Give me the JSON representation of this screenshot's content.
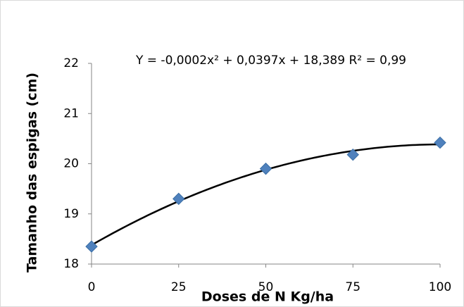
{
  "chart_data": {
    "type": "scatter",
    "annotation": "Y = -0,0002x² + 0,0397x + 18,389 R² = 0,99",
    "x_label": "Doses de N Kg/ha",
    "y_label": "Tamanho das espigas (cm)",
    "x": [
      0,
      25,
      50,
      75,
      100
    ],
    "values": [
      18.35,
      19.3,
      19.9,
      20.18,
      20.42
    ],
    "color": "#4f81bd",
    "trendline": "polynomial",
    "xlim": [
      0,
      100
    ],
    "xticks": [
      0,
      25,
      50,
      75,
      100
    ],
    "ylim": [
      18,
      22
    ],
    "yticks": [
      18,
      19,
      20,
      21,
      22
    ],
    "grid": false
  }
}
